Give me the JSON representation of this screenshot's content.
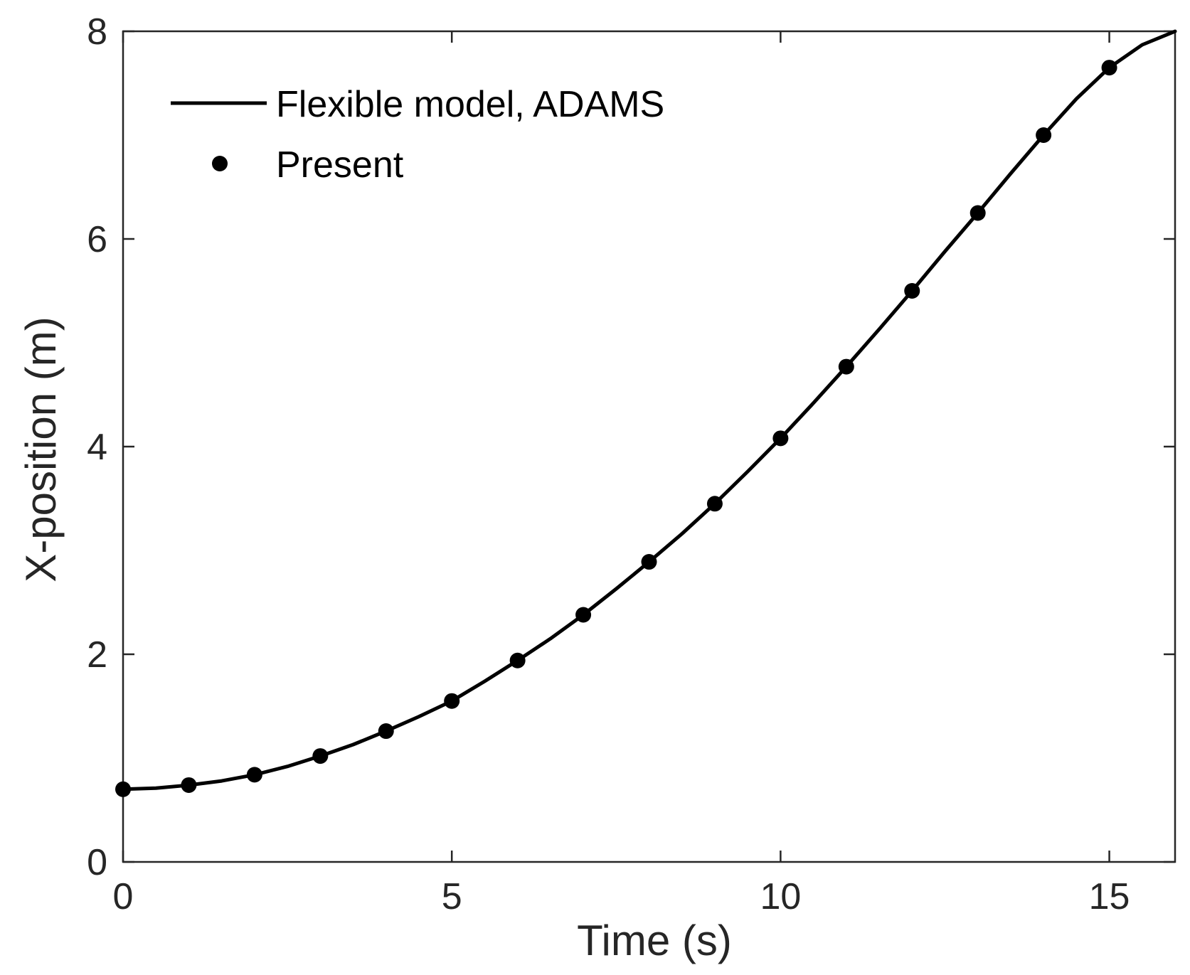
{
  "chart_data": {
    "type": "line",
    "title": "",
    "xlabel": "Time (s)",
    "ylabel": "X-position (m)",
    "xlim": [
      0,
      16
    ],
    "ylim": [
      0,
      8
    ],
    "xticks": [
      0,
      5,
      10,
      15
    ],
    "yticks": [
      0,
      2,
      4,
      6,
      8
    ],
    "grid": false,
    "box": true,
    "legend": {
      "position": "top-left",
      "entries": [
        "Flexible model, ADAMS",
        "Present"
      ]
    },
    "series": [
      {
        "name": "Flexible model, ADAMS",
        "style": "line",
        "color": "#000000",
        "x": [
          0,
          0.5,
          1,
          1.5,
          2,
          2.5,
          3,
          3.5,
          4,
          4.5,
          5,
          5.5,
          6,
          6.5,
          7,
          7.5,
          8,
          8.5,
          9,
          9.5,
          10,
          10.5,
          11,
          11.5,
          12,
          12.5,
          13,
          13.5,
          14,
          14.5,
          15,
          15.5,
          16
        ],
        "y": [
          0.7,
          0.71,
          0.74,
          0.78,
          0.84,
          0.92,
          1.02,
          1.13,
          1.26,
          1.4,
          1.55,
          1.74,
          1.94,
          2.15,
          2.38,
          2.63,
          2.89,
          3.16,
          3.45,
          3.76,
          4.08,
          4.42,
          4.77,
          5.13,
          5.5,
          5.88,
          6.25,
          6.63,
          7.0,
          7.35,
          7.65,
          7.87,
          8.0
        ]
      },
      {
        "name": "Present",
        "style": "markers",
        "color": "#000000",
        "x": [
          0,
          1,
          2,
          3,
          4,
          5,
          6,
          7,
          8,
          9,
          10,
          11,
          12,
          13,
          14,
          15
        ],
        "y": [
          0.7,
          0.74,
          0.84,
          1.02,
          1.26,
          1.55,
          1.94,
          2.38,
          2.89,
          3.45,
          4.08,
          4.77,
          5.5,
          6.25,
          7.0,
          7.65
        ]
      }
    ]
  }
}
